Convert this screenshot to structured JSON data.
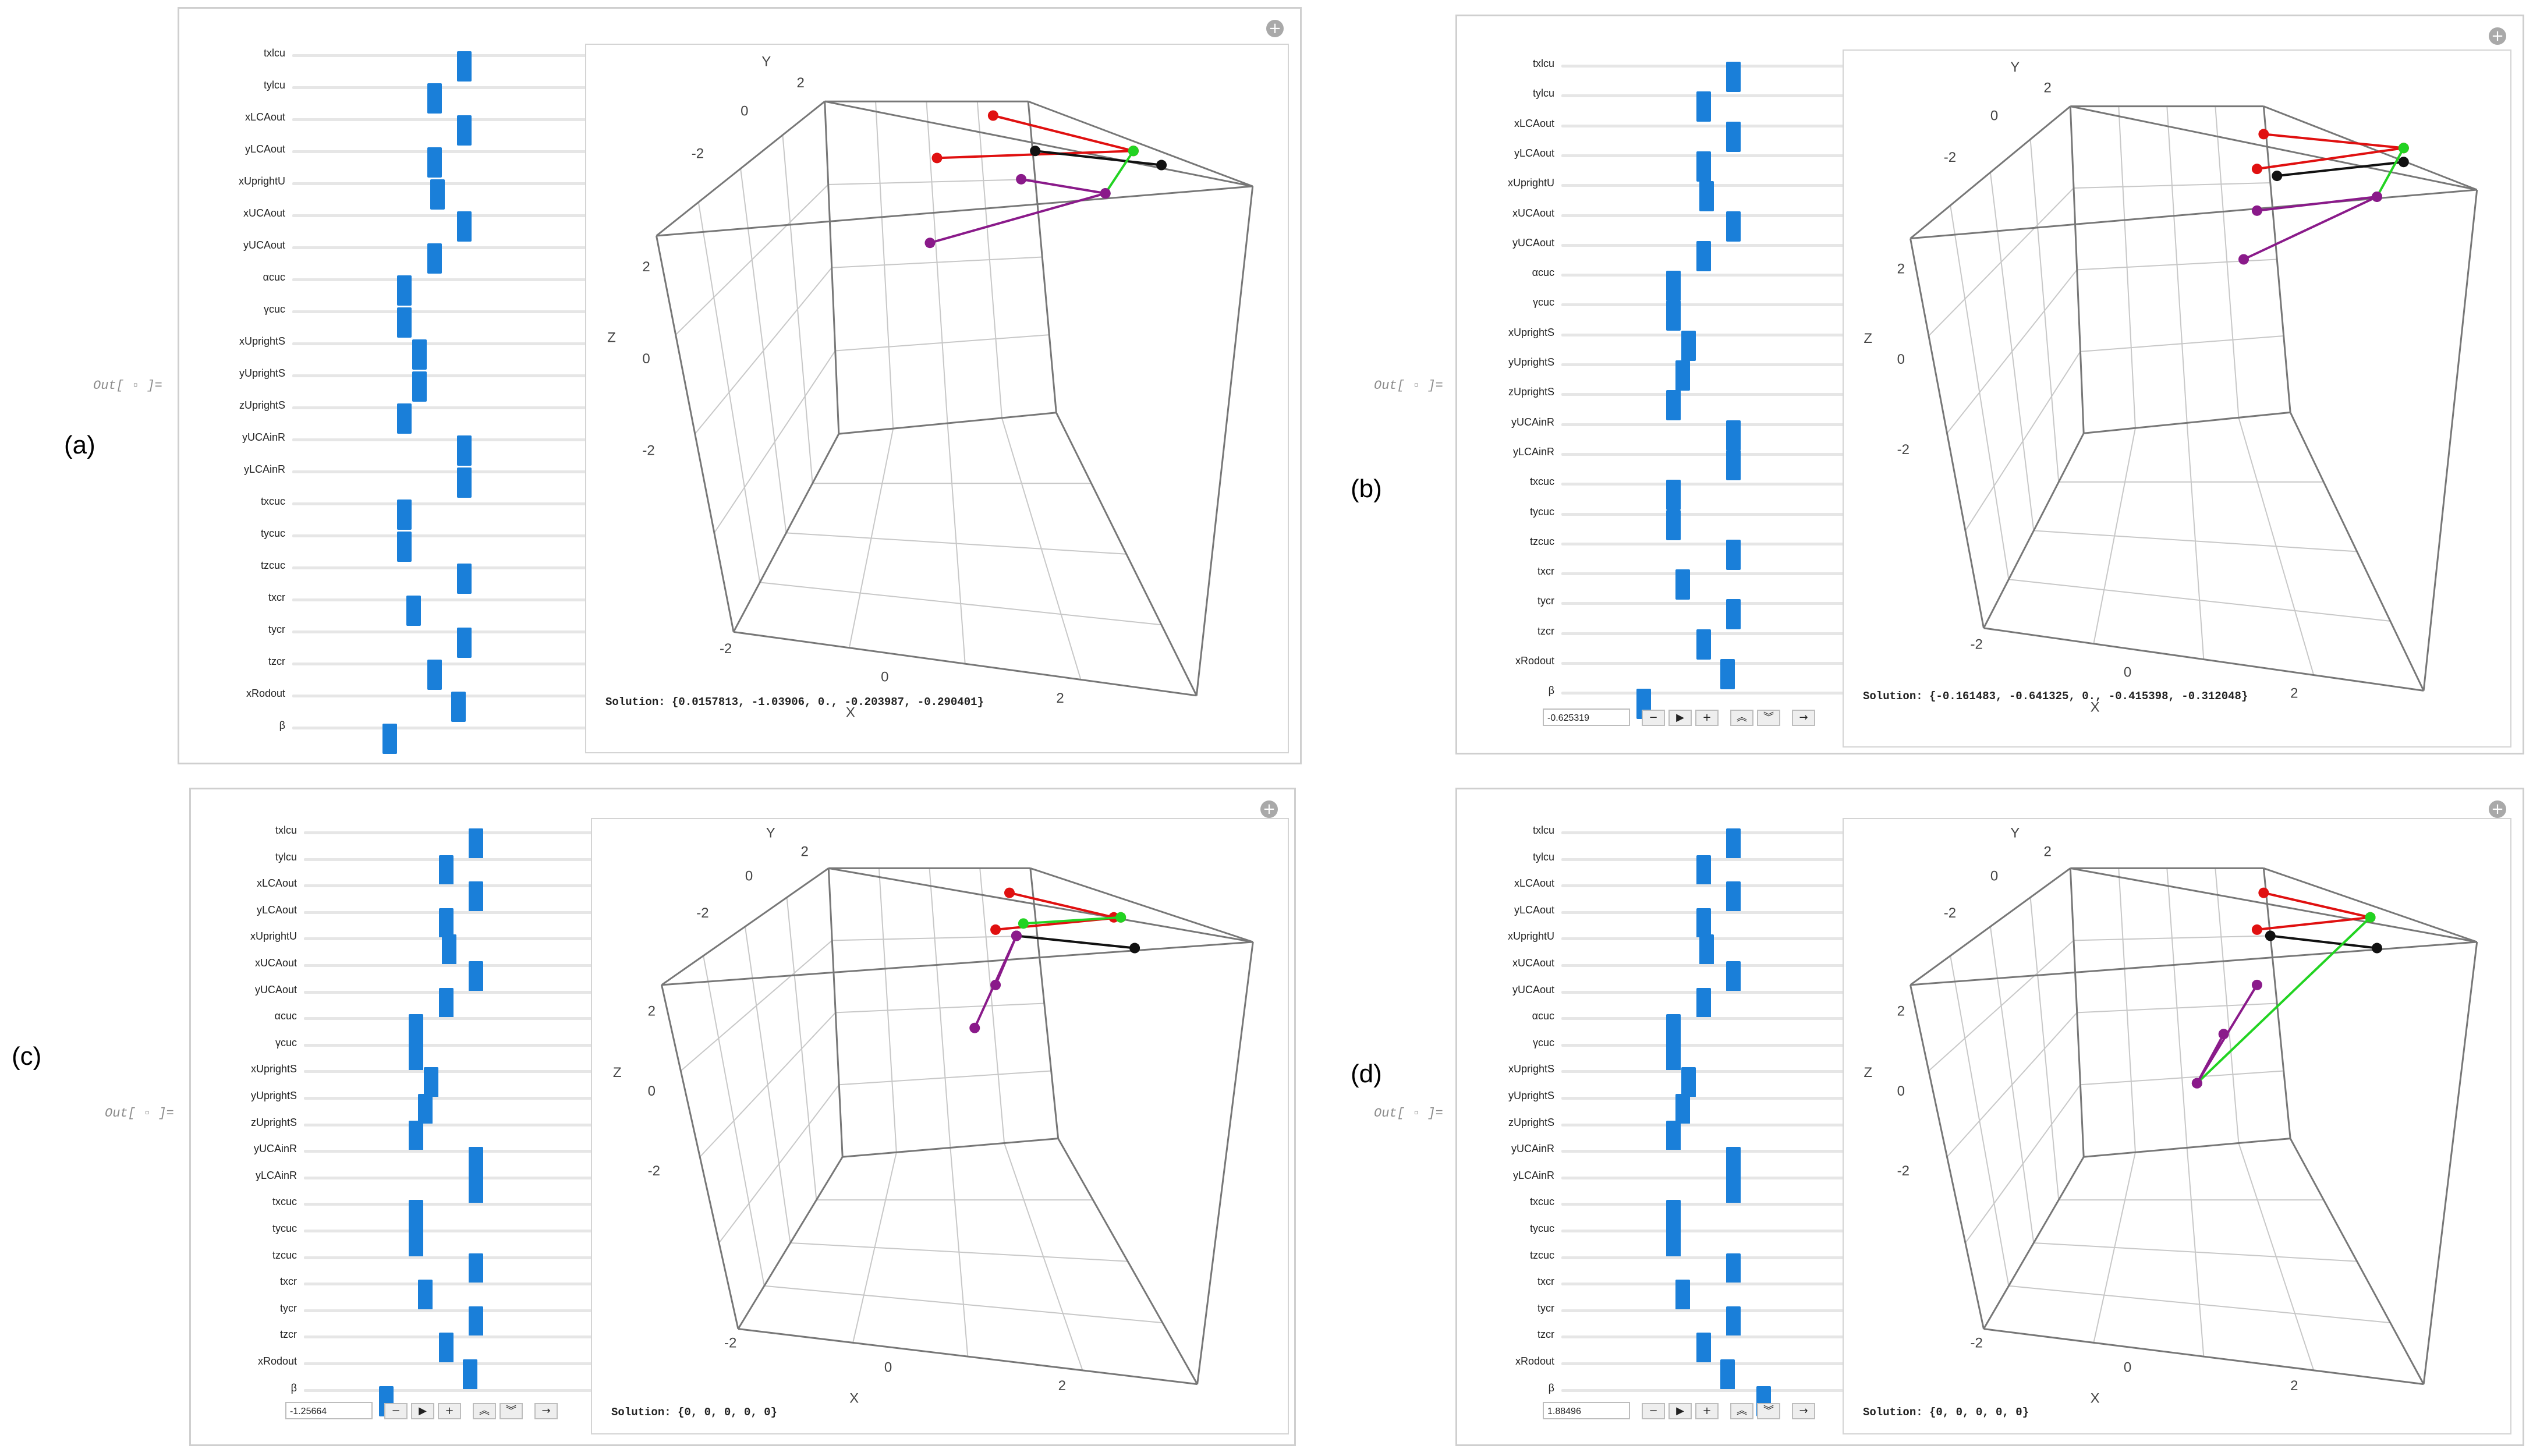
{
  "out_label": "Out[ ▫ ]=",
  "slider_names_a": [
    "txlcu",
    "tylcu",
    "xLCAout",
    "yLCAout",
    "xUprightU",
    "xUCAout",
    "yUCAout",
    "αcuc",
    "γcuc",
    "xUprightS",
    "yUprightS",
    "zUprightS",
    "yUCAinR",
    "yLCAinR",
    "txcuc",
    "tycuc",
    "tzcuc",
    "txcr",
    "tycr",
    "tzcr",
    "xRodout",
    "β"
  ],
  "slider_names_b": [
    "txlcu",
    "tylcu",
    "xLCAout",
    "yLCAout",
    "xUprightU",
    "xUCAout",
    "yUCAout",
    "αcuc",
    "γcuc",
    "xUprightS",
    "yUprightS",
    "zUprightS",
    "yUCAinR",
    "yLCAinR",
    "txcuc",
    "tycuc",
    "tzcuc",
    "txcr",
    "tycr",
    "tzcr",
    "xRodout",
    "β"
  ],
  "panels": [
    {
      "label": "(a)",
      "solution": "Solution: {0.0157813, -1.03906, 0., -0.203987, -0.290401}",
      "thumbs": [
        0.55,
        0.45,
        0.55,
        0.45,
        0.46,
        0.55,
        0.45,
        0.35,
        0.35,
        0.4,
        0.4,
        0.35,
        0.55,
        0.55,
        0.35,
        0.35,
        0.55,
        0.38,
        0.55,
        0.45,
        0.53,
        0.3
      ],
      "has_anim": false,
      "anim_value": "",
      "axes": {
        "x_ticks": [
          "-2",
          "0",
          "2"
        ],
        "y_ticks": [
          "2",
          "0",
          "-2"
        ],
        "z_ticks": [
          "2",
          "0",
          "-2"
        ]
      }
    },
    {
      "label": "(b)",
      "solution": "Solution: {-0.161483, -0.641325, 0., -0.415398, -0.312048}",
      "thumbs": [
        0.55,
        0.45,
        0.55,
        0.45,
        0.46,
        0.55,
        0.45,
        0.35,
        0.35,
        0.4,
        0.38,
        0.35,
        0.55,
        0.55,
        0.35,
        0.35,
        0.55,
        0.38,
        0.55,
        0.45,
        0.53,
        0.25
      ],
      "has_anim": true,
      "anim_value": "-0.625319",
      "axes": {
        "x_ticks": [
          "-2",
          "0",
          "2"
        ],
        "y_ticks": [
          "2",
          "0",
          "-2"
        ],
        "z_ticks": [
          "2",
          "0",
          "-2"
        ]
      }
    },
    {
      "label": "(c)",
      "solution": "Solution: {0, 0, 0, 0, 0}",
      "thumbs": [
        0.55,
        0.45,
        0.55,
        0.45,
        0.46,
        0.55,
        0.45,
        0.35,
        0.35,
        0.4,
        0.38,
        0.35,
        0.55,
        0.55,
        0.35,
        0.35,
        0.55,
        0.38,
        0.55,
        0.45,
        0.53,
        0.25
      ],
      "has_anim": true,
      "anim_value": "-1.25664",
      "axes": {
        "x_ticks": [
          "-2",
          "0",
          "2"
        ],
        "y_ticks": [
          "2",
          "0",
          "-2"
        ],
        "z_ticks": [
          "2",
          "0",
          "-2"
        ]
      }
    },
    {
      "label": "(d)",
      "solution": "Solution: {0, 0, 0, 0, 0}",
      "thumbs": [
        0.55,
        0.45,
        0.55,
        0.45,
        0.46,
        0.55,
        0.45,
        0.35,
        0.35,
        0.4,
        0.38,
        0.35,
        0.55,
        0.55,
        0.35,
        0.35,
        0.55,
        0.38,
        0.55,
        0.45,
        0.53,
        0.65
      ],
      "has_anim": true,
      "anim_value": "1.88496",
      "axes": {
        "x_ticks": [
          "-2",
          "0",
          "2"
        ],
        "y_ticks": [
          "2",
          "0",
          "-2"
        ],
        "z_ticks": [
          "2",
          "0",
          "-2"
        ]
      }
    }
  ],
  "anim_buttons": [
    "−",
    "▶",
    "+",
    "︽",
    "︾",
    "→"
  ],
  "axis_names": {
    "x": "X",
    "y": "Y",
    "z": "Z"
  },
  "colors": {
    "thumb": "#1a7fd9",
    "red": "#e01010",
    "black": "#111111",
    "green": "#22d322",
    "purple": "#8a1a8a"
  }
}
